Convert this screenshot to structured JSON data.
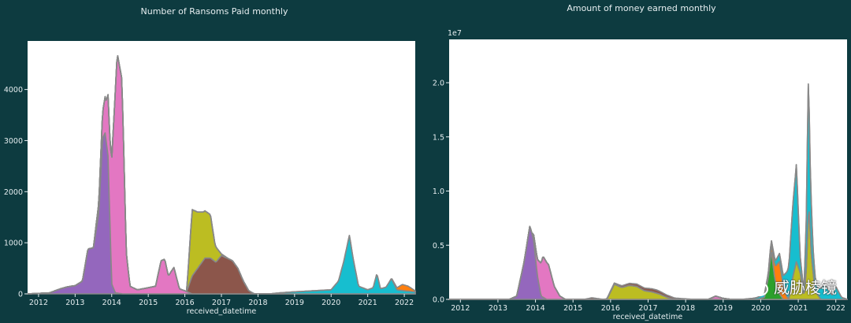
{
  "colors": {
    "background": "#0d3b40",
    "plot_bg": "#ffffff",
    "stroke": "#888888",
    "text": "#e6eef0"
  },
  "chart_data": [
    {
      "type": "area",
      "title": "Number of Ransoms Paid monthly",
      "xlabel": "received_datetime",
      "ylabel": "",
      "xlim": [
        2011.7,
        2022.3
      ],
      "ylim": [
        0,
        4950
      ],
      "xticks": [
        2012,
        2013,
        2014,
        2015,
        2016,
        2017,
        2018,
        2019,
        2020,
        2021,
        2022
      ],
      "yticks": [
        0,
        1000,
        2000,
        3000,
        4000
      ],
      "offset_label": "",
      "stacked": true,
      "series": [
        {
          "color": "#9467bd",
          "points": [
            [
              2011.7,
              0
            ],
            [
              2012.3,
              20
            ],
            [
              2012.6,
              100
            ],
            [
              2012.8,
              140
            ],
            [
              2013.0,
              160
            ],
            [
              2013.2,
              250
            ],
            [
              2013.35,
              880
            ],
            [
              2013.5,
              900
            ],
            [
              2013.65,
              1600
            ],
            [
              2013.75,
              3050
            ],
            [
              2013.82,
              3150
            ],
            [
              2013.9,
              2700
            ],
            [
              2014.0,
              200
            ],
            [
              2014.1,
              20
            ],
            [
              2014.3,
              0
            ],
            [
              2022.3,
              0
            ]
          ]
        },
        {
          "color": "#e377c2",
          "points": [
            [
              2011.7,
              0
            ],
            [
              2013.5,
              0
            ],
            [
              2013.65,
              200
            ],
            [
              2013.85,
              800
            ],
            [
              2013.95,
              1600
            ],
            [
              2014.05,
              3200
            ],
            [
              2014.15,
              4700
            ],
            [
              2014.28,
              4200
            ],
            [
              2014.4,
              800
            ],
            [
              2014.5,
              150
            ],
            [
              2014.7,
              80
            ],
            [
              2014.85,
              100
            ],
            [
              2015.0,
              120
            ],
            [
              2015.2,
              150
            ],
            [
              2015.35,
              650
            ],
            [
              2015.45,
              680
            ],
            [
              2015.55,
              350
            ],
            [
              2015.7,
              520
            ],
            [
              2015.85,
              100
            ],
            [
              2016.0,
              60
            ],
            [
              2016.2,
              0
            ],
            [
              2022.3,
              0
            ]
          ]
        },
        {
          "color": "#8c564b",
          "points": [
            [
              2011.7,
              0
            ],
            [
              2016.05,
              0
            ],
            [
              2016.2,
              350
            ],
            [
              2016.4,
              550
            ],
            [
              2016.55,
              700
            ],
            [
              2016.7,
              700
            ],
            [
              2016.85,
              620
            ],
            [
              2017.0,
              750
            ],
            [
              2017.15,
              700
            ],
            [
              2017.3,
              650
            ],
            [
              2017.45,
              500
            ],
            [
              2017.6,
              250
            ],
            [
              2017.75,
              60
            ],
            [
              2017.9,
              0
            ],
            [
              2022.3,
              0
            ]
          ]
        },
        {
          "color": "#bcbd22",
          "points": [
            [
              2011.7,
              0
            ],
            [
              2016.05,
              0
            ],
            [
              2016.2,
              1300
            ],
            [
              2016.35,
              1100
            ],
            [
              2016.5,
              950
            ],
            [
              2016.6,
              900
            ],
            [
              2016.7,
              850
            ],
            [
              2016.82,
              350
            ],
            [
              2017.0,
              30
            ],
            [
              2017.2,
              0
            ],
            [
              2022.3,
              0
            ]
          ]
        },
        {
          "color": "#17becf",
          "points": [
            [
              2011.7,
              0
            ],
            [
              2018.3,
              0
            ],
            [
              2018.6,
              20
            ],
            [
              2019.0,
              40
            ],
            [
              2019.5,
              60
            ],
            [
              2020.0,
              80
            ],
            [
              2020.2,
              250
            ],
            [
              2020.35,
              650
            ],
            [
              2020.5,
              1150
            ],
            [
              2020.6,
              700
            ],
            [
              2020.75,
              150
            ],
            [
              2021.0,
              80
            ],
            [
              2021.15,
              120
            ],
            [
              2021.25,
              400
            ],
            [
              2021.35,
              100
            ],
            [
              2021.5,
              130
            ],
            [
              2021.65,
              300
            ],
            [
              2021.8,
              80
            ],
            [
              2022.0,
              60
            ],
            [
              2022.3,
              40
            ]
          ]
        },
        {
          "color": "#ff7f0e",
          "points": [
            [
              2011.7,
              0
            ],
            [
              2021.6,
              0
            ],
            [
              2021.8,
              40
            ],
            [
              2021.95,
              120
            ],
            [
              2022.1,
              100
            ],
            [
              2022.3,
              20
            ]
          ]
        }
      ]
    },
    {
      "type": "area",
      "title": "Amount of money earned monthly",
      "xlabel": "received_datetime",
      "ylabel": "",
      "xlim": [
        2011.7,
        2022.3
      ],
      "ylim": [
        0,
        24000000
      ],
      "xticks": [
        2012,
        2013,
        2014,
        2015,
        2016,
        2017,
        2018,
        2019,
        2020,
        2021,
        2022
      ],
      "yticks": [
        0,
        5000000,
        10000000,
        15000000,
        20000000
      ],
      "ytick_labels": [
        "0.0",
        "0.5",
        "1.0",
        "1.5",
        "2.0"
      ],
      "offset_label": "1e7",
      "stacked": true,
      "series": [
        {
          "color": "#9467bd",
          "points": [
            [
              2011.7,
              0
            ],
            [
              2013.3,
              0
            ],
            [
              2013.5,
              300000
            ],
            [
              2013.7,
              3500000
            ],
            [
              2013.85,
              6800000
            ],
            [
              2013.95,
              5500000
            ],
            [
              2014.05,
              2200000
            ],
            [
              2014.15,
              300000
            ],
            [
              2014.3,
              0
            ],
            [
              2022.3,
              0
            ]
          ]
        },
        {
          "color": "#e377c2",
          "points": [
            [
              2011.7,
              0
            ],
            [
              2013.9,
              0
            ],
            [
              2014.05,
              1500000
            ],
            [
              2014.2,
              3800000
            ],
            [
              2014.35,
              3200000
            ],
            [
              2014.5,
              1200000
            ],
            [
              2014.65,
              300000
            ],
            [
              2014.8,
              0
            ],
            [
              2018.6,
              0
            ],
            [
              2018.8,
              300000
            ],
            [
              2019.0,
              100000
            ],
            [
              2019.2,
              0
            ],
            [
              2022.3,
              0
            ]
          ]
        },
        {
          "color": "#bcbd22",
          "points": [
            [
              2011.7,
              0
            ],
            [
              2015.9,
              0
            ],
            [
              2016.1,
              1400000
            ],
            [
              2016.3,
              1100000
            ],
            [
              2016.5,
              1300000
            ],
            [
              2016.7,
              1200000
            ],
            [
              2016.9,
              800000
            ],
            [
              2017.1,
              700000
            ],
            [
              2017.3,
              500000
            ],
            [
              2017.5,
              200000
            ],
            [
              2017.7,
              0
            ],
            [
              2020.75,
              0
            ],
            [
              2020.85,
              2000000
            ],
            [
              2020.95,
              3500000
            ],
            [
              2021.05,
              2500000
            ],
            [
              2021.15,
              200000
            ],
            [
              2021.22,
              3000000
            ],
            [
              2021.28,
              9000000
            ],
            [
              2021.35,
              4000000
            ],
            [
              2021.45,
              800000
            ],
            [
              2021.6,
              0
            ],
            [
              2022.3,
              0
            ]
          ]
        },
        {
          "color": "#2ca02c",
          "points": [
            [
              2011.7,
              0
            ],
            [
              2019.9,
              0
            ],
            [
              2020.1,
              200000
            ],
            [
              2020.2,
              2000000
            ],
            [
              2020.28,
              4500000
            ],
            [
              2020.38,
              1800000
            ],
            [
              2020.5,
              500000
            ],
            [
              2020.6,
              0
            ],
            [
              2022.3,
              0
            ]
          ]
        },
        {
          "color": "#ff7f0e",
          "points": [
            [
              2011.7,
              0
            ],
            [
              2020.2,
              0
            ],
            [
              2020.4,
              1500000
            ],
            [
              2020.5,
              3000000
            ],
            [
              2020.6,
              1200000
            ],
            [
              2020.7,
              200000
            ],
            [
              2020.8,
              0
            ],
            [
              2022.3,
              0
            ]
          ]
        },
        {
          "color": "#17becf",
          "points": [
            [
              2011.7,
              0
            ],
            [
              2019.5,
              0
            ],
            [
              2019.8,
              100000
            ],
            [
              2020.1,
              300000
            ],
            [
              2020.4,
              500000
            ],
            [
              2020.6,
              1000000
            ],
            [
              2020.75,
              3000000
            ],
            [
              2020.85,
              6500000
            ],
            [
              2020.95,
              9000000
            ],
            [
              2021.05,
              1500000
            ],
            [
              2021.15,
              500000
            ],
            [
              2021.22,
              5000000
            ],
            [
              2021.26,
              13000000
            ],
            [
              2021.32,
              6000000
            ],
            [
              2021.4,
              2000000
            ],
            [
              2021.5,
              600000
            ],
            [
              2021.7,
              1400000
            ],
            [
              2021.9,
              400000
            ],
            [
              2022.0,
              1200000
            ],
            [
              2022.15,
              200000
            ],
            [
              2022.3,
              0
            ]
          ]
        },
        {
          "color": "#8c564b",
          "points": [
            [
              2011.7,
              0
            ],
            [
              2015.3,
              0
            ],
            [
              2015.5,
              150000
            ],
            [
              2015.8,
              0
            ],
            [
              2016.0,
              100000
            ],
            [
              2016.6,
              200000
            ],
            [
              2017.2,
              300000
            ],
            [
              2017.8,
              100000
            ],
            [
              2018.2,
              0
            ],
            [
              2022.3,
              0
            ]
          ]
        }
      ]
    }
  ]
}
